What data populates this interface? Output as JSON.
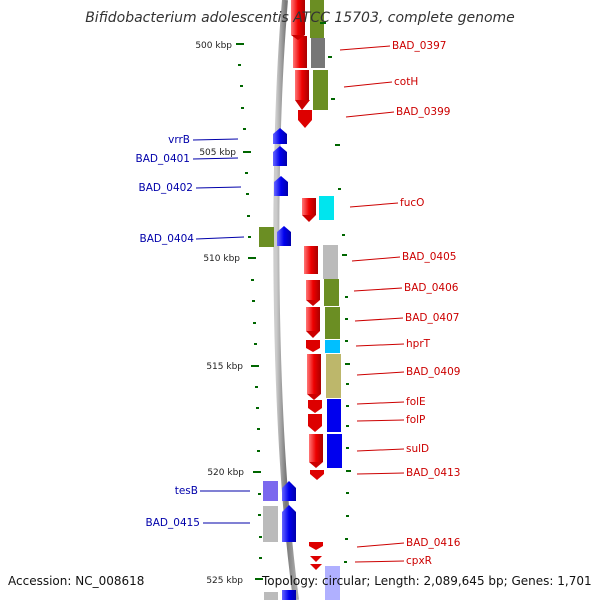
{
  "title": "Bifidobacterium adolescentis ATCC 15703, complete genome",
  "footer": {
    "accession": "Accession: NC_008618",
    "topology": "Topology: circular; Length: 2,089,645 bp; Genes: 1,701"
  },
  "scale_labels": [
    "500 kbp",
    "505 kbp",
    "510 kbp",
    "515 kbp",
    "520 kbp",
    "525 kbp"
  ],
  "colors": {
    "right_label": "#cc0000",
    "left_label": "#0000aa",
    "scale_tick": "#006600",
    "backbone": "#888888"
  },
  "genes_right": [
    {
      "label": "BAD_0397",
      "strand": "-",
      "category_color": "#777777"
    },
    {
      "label": "cotH",
      "strand": "-",
      "category_color": "#6b8e23"
    },
    {
      "label": "BAD_0399",
      "strand": "-",
      "category_color": ""
    },
    {
      "label": "fucO",
      "strand": "-",
      "category_color": "#00e5ee"
    },
    {
      "label": "BAD_0405",
      "strand": "-",
      "category_color": "#bbbbbb"
    },
    {
      "label": "BAD_0406",
      "strand": "-",
      "category_color": "#6b8e23"
    },
    {
      "label": "BAD_0407",
      "strand": "-",
      "category_color": "#6b8e23"
    },
    {
      "label": "hprT",
      "strand": "-",
      "category_color": "#00bfff"
    },
    {
      "label": "BAD_0409",
      "strand": "-",
      "category_color": "#bdb76b"
    },
    {
      "label": "folE",
      "strand": "-",
      "category_color": "#0000ee"
    },
    {
      "label": "folP",
      "strand": "-",
      "category_color": "#0000ee"
    },
    {
      "label": "sulD",
      "strand": "-",
      "category_color": "#0000ee"
    },
    {
      "label": "BAD_0413",
      "strand": "-",
      "category_color": ""
    },
    {
      "label": "BAD_0416",
      "strand": "-",
      "category_color": ""
    },
    {
      "label": "cpxR",
      "strand": "-",
      "category_color": ""
    }
  ],
  "genes_left": [
    {
      "label": "vrrB",
      "strand": "+",
      "category_color": ""
    },
    {
      "label": "BAD_0401",
      "strand": "+",
      "category_color": ""
    },
    {
      "label": "BAD_0402",
      "strand": "+",
      "category_color": ""
    },
    {
      "label": "BAD_0404",
      "strand": "+",
      "category_color": "#6b8e23"
    },
    {
      "label": "tesB",
      "strand": "+",
      "category_color": "#7b68ee"
    },
    {
      "label": "BAD_0415",
      "strand": "+",
      "category_color": "#bbbbbb"
    }
  ]
}
